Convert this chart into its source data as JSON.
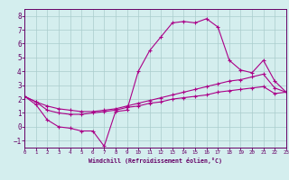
{
  "xlabel": "Windchill (Refroidissement éolien,°C)",
  "background_color": "#d4eeee",
  "grid_color": "#aacccc",
  "line_color": "#aa0088",
  "x_ticks": [
    0,
    1,
    2,
    3,
    4,
    5,
    6,
    7,
    8,
    9,
    10,
    11,
    12,
    13,
    14,
    15,
    16,
    17,
    18,
    19,
    20,
    21,
    22,
    23
  ],
  "y_ticks": [
    -1,
    0,
    1,
    2,
    3,
    4,
    5,
    6,
    7,
    8
  ],
  "xlim": [
    0,
    23
  ],
  "ylim": [
    -1.5,
    8.5
  ],
  "series1_x": [
    0,
    1,
    2,
    3,
    4,
    5,
    6,
    7,
    8,
    9,
    10,
    11,
    12,
    13,
    14,
    15,
    16,
    17,
    18,
    19,
    20,
    21,
    22,
    23
  ],
  "series1_y": [
    2.2,
    1.6,
    0.5,
    0.0,
    -0.1,
    -0.3,
    -0.3,
    -1.4,
    1.1,
    1.2,
    4.0,
    5.5,
    6.5,
    7.5,
    7.6,
    7.5,
    7.8,
    7.2,
    4.8,
    4.1,
    3.9,
    4.8,
    3.3,
    2.5
  ],
  "series2_x": [
    0,
    1,
    2,
    3,
    4,
    5,
    6,
    7,
    8,
    9,
    10,
    11,
    12,
    13,
    14,
    15,
    16,
    17,
    18,
    19,
    20,
    21,
    22,
    23
  ],
  "series2_y": [
    2.2,
    1.8,
    1.2,
    1.0,
    0.9,
    0.9,
    1.0,
    1.1,
    1.2,
    1.4,
    1.5,
    1.7,
    1.8,
    2.0,
    2.1,
    2.2,
    2.3,
    2.5,
    2.6,
    2.7,
    2.8,
    2.9,
    2.4,
    2.5
  ],
  "series3_x": [
    0,
    1,
    2,
    3,
    4,
    5,
    6,
    7,
    8,
    9,
    10,
    11,
    12,
    13,
    14,
    15,
    16,
    17,
    18,
    19,
    20,
    21,
    22,
    23
  ],
  "series3_y": [
    2.2,
    1.8,
    1.5,
    1.3,
    1.2,
    1.1,
    1.1,
    1.2,
    1.3,
    1.5,
    1.7,
    1.9,
    2.1,
    2.3,
    2.5,
    2.7,
    2.9,
    3.1,
    3.3,
    3.4,
    3.6,
    3.8,
    2.8,
    2.5
  ],
  "tick_label_color": "#660066",
  "spine_color": "#660066"
}
